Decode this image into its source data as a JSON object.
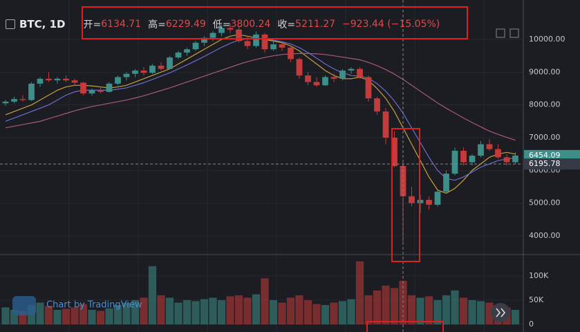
{
  "chart_data": {
    "type": "candlestick",
    "title": "BTC, 1D",
    "ohlc": [
      {
        "name": "开=",
        "value": "6134.71"
      },
      {
        "name": "高=",
        "value": "6229.49"
      },
      {
        "name": "低=",
        "value": "3800.24"
      },
      {
        "name": "收=",
        "value": "5211.27"
      }
    ],
    "change": "−923.44 (−15.05%)",
    "watermark": "Chart by TradingView",
    "up_color": "#3d8f8a",
    "down_color": "#c43b3b",
    "grid": true,
    "ylim": [
      3430,
      11205
    ],
    "yticks": [
      {
        "value": 4000,
        "label": "4000.00"
      },
      {
        "value": 5000,
        "label": "5000.00"
      },
      {
        "value": 6000,
        "label": "6000.00"
      },
      {
        "value": 7000,
        "label": "7000.00"
      },
      {
        "value": 8000,
        "label": "8000.00"
      },
      {
        "value": 9000,
        "label": "9000.00"
      },
      {
        "value": 10000,
        "label": "10000.00"
      }
    ],
    "crosshair_price": 6195.78,
    "volume_ylim": [
      -15700,
      144000
    ],
    "volume_yticks": [
      0,
      {
        "value": 50000,
        "label": "50K"
      },
      {
        "value": 100000,
        "label": "100K"
      }
    ],
    "categories": [
      null,
      null,
      null,
      null,
      null,
      null,
      null,
      null,
      null,
      null,
      null,
      null,
      null,
      null,
      null,
      null,
      null,
      null,
      null,
      null,
      null,
      null,
      null,
      null,
      null,
      null,
      null,
      null,
      null,
      null,
      null,
      null,
      null,
      null,
      null,
      null,
      null,
      null,
      null,
      null,
      null,
      null,
      null,
      null,
      null,
      null,
      null,
      null,
      null,
      null,
      null,
      null,
      null,
      null,
      null,
      null,
      null,
      null,
      null,
      null
    ],
    "open": [
      8050,
      8100,
      8180,
      8150,
      8650,
      8800,
      8750,
      8800,
      8750,
      8680,
      8350,
      8450,
      8400,
      8650,
      8850,
      8950,
      9050,
      8980,
      9200,
      9100,
      9450,
      9600,
      9700,
      9900,
      10050,
      10200,
      10350,
      10300,
      9950,
      9800,
      10150,
      9700,
      9850,
      9750,
      9400,
      8900,
      8700,
      8600,
      8850,
      8800,
      9050,
      9100,
      8850,
      8200,
      7800,
      7000,
      6134.71,
      5210,
      5000,
      5100,
      4950,
      5350,
      5900,
      6600,
      6250,
      6450,
      6800,
      6650,
      6400,
      6250
    ],
    "high": [
      8150,
      8250,
      8300,
      8700,
      8850,
      9000,
      8850,
      8900,
      8800,
      8700,
      8500,
      8550,
      8700,
      8900,
      9000,
      9100,
      9150,
      9250,
      9300,
      9500,
      9650,
      9750,
      9950,
      10100,
      10250,
      10450,
      10500,
      10400,
      10100,
      10250,
      10200,
      9950,
      9900,
      9800,
      9450,
      9000,
      8850,
      8900,
      8950,
      9100,
      9150,
      9150,
      8900,
      8250,
      7900,
      7200,
      6229.49,
      5500,
      5250,
      5200,
      5400,
      6000,
      6700,
      6700,
      6500,
      6900,
      6950,
      6800,
      6500,
      6550
    ],
    "low": [
      7980,
      8050,
      8100,
      8120,
      8550,
      8700,
      8650,
      8700,
      8600,
      8300,
      8280,
      8350,
      8380,
      8600,
      8750,
      8850,
      8900,
      8950,
      9050,
      9080,
      9400,
      9500,
      9650,
      9800,
      9950,
      10100,
      10200,
      9900,
      9700,
      9750,
      9600,
      9650,
      9650,
      9300,
      8800,
      8600,
      8550,
      8580,
      8700,
      8750,
      8950,
      8800,
      8100,
      7700,
      6800,
      6100,
      3800.24,
      4900,
      4700,
      4800,
      4900,
      5300,
      5850,
      6150,
      6150,
      6400,
      6600,
      6350,
      6150,
      6200
    ],
    "close": [
      8100,
      8180,
      8150,
      8650,
      8800,
      8750,
      8800,
      8750,
      8680,
      8350,
      8450,
      8400,
      8650,
      8850,
      8950,
      9050,
      8980,
      9200,
      9100,
      9450,
      9600,
      9700,
      9900,
      10050,
      10200,
      10350,
      10300,
      9950,
      9800,
      10150,
      9700,
      9850,
      9750,
      9400,
      8900,
      8700,
      8600,
      8850,
      8800,
      9050,
      9100,
      8850,
      8200,
      7800,
      7000,
      6130,
      5211.27,
      5000,
      5100,
      4950,
      5350,
      5900,
      6600,
      6250,
      6450,
      6800,
      6650,
      6400,
      6250,
      6454.09
    ],
    "volume": [
      35000,
      30000,
      28000,
      40000,
      45000,
      38000,
      30000,
      32000,
      35000,
      42000,
      30000,
      28000,
      33000,
      40000,
      45000,
      50000,
      55000,
      120000,
      60000,
      55000,
      45000,
      50000,
      48000,
      52000,
      55000,
      50000,
      58000,
      60000,
      55000,
      62000,
      95000,
      50000,
      45000,
      55000,
      60000,
      50000,
      42000,
      40000,
      45000,
      48000,
      52000,
      130000,
      60000,
      70000,
      80000,
      75000,
      90000,
      60000,
      55000,
      58000,
      50000,
      60000,
      70000,
      55000,
      50000,
      48000,
      45000,
      40000,
      35000,
      30000
    ],
    "series": [
      {
        "color": "#c9a23a",
        "values": [
          7700,
          7800,
          7900,
          8000,
          8150,
          8300,
          8450,
          8550,
          8600,
          8600,
          8580,
          8550,
          8520,
          8550,
          8600,
          8700,
          8800,
          8900,
          9000,
          9100,
          9250,
          9400,
          9550,
          9700,
          9850,
          10000,
          10100,
          10150,
          10100,
          10050,
          10000,
          9950,
          9900,
          9800,
          9650,
          9450,
          9250,
          9050,
          8900,
          8800,
          8800,
          8850,
          8750,
          8500,
          8200,
          7800,
          7300,
          6800,
          6300,
          5800,
          5400,
          5300,
          5450,
          5700,
          6000,
          6200,
          6400,
          6500,
          6550,
          6500
        ]
      },
      {
        "color": "#6a6fd0",
        "values": [
          7500,
          7600,
          7700,
          7800,
          7900,
          8000,
          8150,
          8300,
          8400,
          8450,
          8450,
          8450,
          8450,
          8480,
          8520,
          8600,
          8680,
          8780,
          8880,
          8980,
          9100,
          9220,
          9350,
          9480,
          9620,
          9760,
          9880,
          9980,
          10020,
          10030,
          10010,
          9980,
          9930,
          9860,
          9750,
          9600,
          9430,
          9250,
          9100,
          8980,
          8900,
          8880,
          8820,
          8650,
          8420,
          8120,
          7750,
          7300,
          6850,
          6400,
          6000,
          5750,
          5700,
          5800,
          5950,
          6100,
          6200,
          6300,
          6350,
          6380
        ]
      },
      {
        "color": "#a85a7c",
        "values": [
          7300,
          7350,
          7400,
          7450,
          7500,
          7580,
          7660,
          7740,
          7820,
          7890,
          7950,
          8000,
          8050,
          8100,
          8150,
          8210,
          8280,
          8360,
          8440,
          8520,
          8610,
          8700,
          8790,
          8880,
          8970,
          9060,
          9150,
          9240,
          9320,
          9390,
          9450,
          9500,
          9540,
          9560,
          9570,
          9570,
          9560,
          9540,
          9500,
          9460,
          9420,
          9380,
          9300,
          9200,
          9080,
          8940,
          8780,
          8600,
          8420,
          8240,
          8060,
          7900,
          7750,
          7600,
          7460,
          7330,
          7200,
          7100,
          7010,
          6920
        ]
      }
    ]
  }
}
